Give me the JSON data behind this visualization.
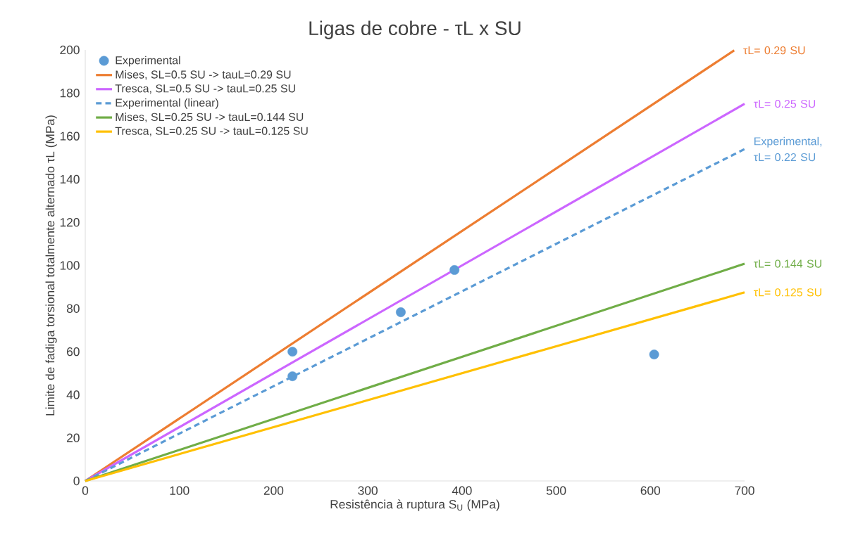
{
  "chart_data": {
    "type": "scatter",
    "title": "Ligas de cobre - τL x SU",
    "xlabel": "Resistência à ruptura S$_{U}$ (MPa)",
    "ylabel": "Limite de fadiga torsional totalmente alternado  τL (MPa)",
    "xlim": [
      0,
      700
    ],
    "xticks": [
      0,
      100,
      200,
      300,
      400,
      500,
      600,
      700
    ],
    "ylim": [
      0,
      200
    ],
    "yticks": [
      0,
      20,
      40,
      60,
      80,
      100,
      120,
      140,
      160,
      180,
      200
    ],
    "legend": "top left",
    "marker": "circle",
    "series": [
      {
        "name": "Experimental",
        "color": "#5b9bd5",
        "x": [
          220,
          220,
          335,
          392,
          604
        ],
        "values": [
          60,
          48.6,
          78.3,
          97.9,
          58.7
        ]
      },
      {
        "name": "Mises, SL=0.5 SU -> tauL=0.29 SU",
        "type": "line",
        "marker": "none",
        "color": "#ed7d31",
        "x": [
          0,
          689
        ],
        "values": [
          0,
          199.8
        ]
      },
      {
        "name": "Tresca, SL=0.5 SU -> tauL=0.25 SU",
        "type": "line",
        "marker": "none",
        "color": "#cc66ff",
        "x": [
          0,
          700
        ],
        "values": [
          0,
          175
        ]
      },
      {
        "name": "Experimental (linear)",
        "type": "line",
        "marker": "none",
        "line_style": "dashed",
        "color": "#5b9bd5",
        "x": [
          0,
          700
        ],
        "values": [
          0,
          154
        ]
      },
      {
        "name": "Mises, SL=0.25 SU -> tauL=0.144 SU",
        "type": "line",
        "marker": "none",
        "color": "#70ad47",
        "x": [
          0,
          700
        ],
        "values": [
          0,
          100.8
        ]
      },
      {
        "name": "Tresca, SL=0.25 SU -> tauL=0.125 SU",
        "type": "line",
        "marker": "none",
        "color": "#ffc000",
        "x": [
          0,
          700
        ],
        "values": [
          0,
          87.5
        ]
      }
    ],
    "annotations": [
      "τL= 0.29 SU",
      "τL= 0.25 SU",
      "Experimental, τL= 0.22 SU",
      "τL= 0.144 SU",
      "τL= 0.125 SU"
    ]
  }
}
